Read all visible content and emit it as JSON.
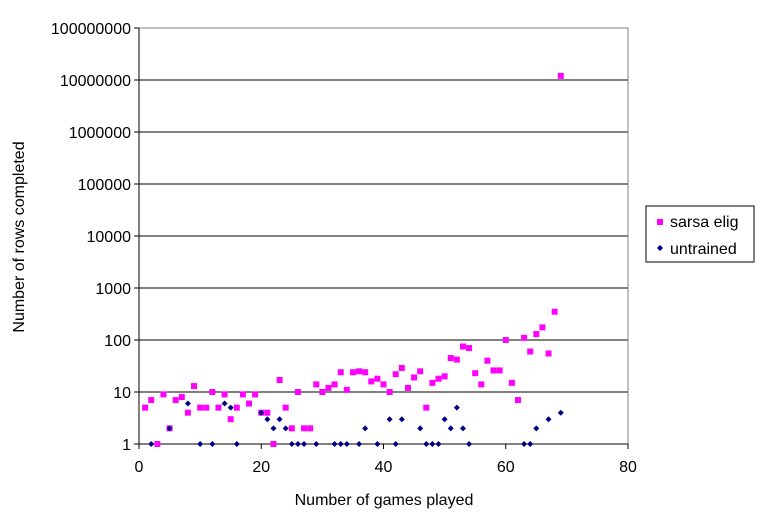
{
  "chart_data": {
    "type": "scatter",
    "xlabel": "Number of games played",
    "ylabel": "Number of rows completed",
    "xlim": [
      0,
      80
    ],
    "ylim": [
      1,
      100000000
    ],
    "yscale": "log",
    "x_ticks": [
      "0",
      "20",
      "40",
      "60",
      "80"
    ],
    "y_ticks": [
      "1",
      "10",
      "100",
      "1000",
      "10000",
      "100000",
      "1000000",
      "10000000",
      "100000000"
    ],
    "grid": "horizontal",
    "legend_position": "right",
    "series": [
      {
        "name": "sarsa elig",
        "color": "#ff00ff",
        "marker": "square",
        "points": [
          [
            1,
            5
          ],
          [
            2,
            7
          ],
          [
            3,
            1
          ],
          [
            4,
            9
          ],
          [
            5,
            2
          ],
          [
            6,
            7
          ],
          [
            7,
            8
          ],
          [
            8,
            4
          ],
          [
            9,
            13
          ],
          [
            10,
            5
          ],
          [
            11,
            5
          ],
          [
            12,
            10
          ],
          [
            13,
            5
          ],
          [
            14,
            9
          ],
          [
            15,
            3
          ],
          [
            16,
            5
          ],
          [
            17,
            9
          ],
          [
            18,
            6
          ],
          [
            19,
            9
          ],
          [
            20,
            4
          ],
          [
            21,
            4
          ],
          [
            22,
            1
          ],
          [
            23,
            17
          ],
          [
            24,
            5
          ],
          [
            25,
            2
          ],
          [
            26,
            10
          ],
          [
            27,
            2
          ],
          [
            28,
            2
          ],
          [
            29,
            14
          ],
          [
            30,
            10
          ],
          [
            31,
            12
          ],
          [
            32,
            14
          ],
          [
            33,
            24
          ],
          [
            34,
            11
          ],
          [
            35,
            24
          ],
          [
            36,
            25
          ],
          [
            37,
            24
          ],
          [
            38,
            16
          ],
          [
            39,
            18
          ],
          [
            40,
            14
          ],
          [
            41,
            10
          ],
          [
            42,
            22
          ],
          [
            43,
            29
          ],
          [
            44,
            12
          ],
          [
            45,
            19
          ],
          [
            46,
            25
          ],
          [
            47,
            5
          ],
          [
            48,
            15
          ],
          [
            49,
            18
          ],
          [
            50,
            20
          ],
          [
            51,
            45
          ],
          [
            52,
            42
          ],
          [
            53,
            75
          ],
          [
            54,
            70
          ],
          [
            55,
            23
          ],
          [
            56,
            14
          ],
          [
            57,
            40
          ],
          [
            58,
            26
          ],
          [
            59,
            26
          ],
          [
            60,
            100
          ],
          [
            61,
            15
          ],
          [
            62,
            7
          ],
          [
            63,
            110
          ],
          [
            64,
            60
          ],
          [
            65,
            130
          ],
          [
            66,
            175
          ],
          [
            67,
            55
          ],
          [
            68,
            350
          ],
          [
            69,
            12000000
          ]
        ]
      },
      {
        "name": "untrained",
        "color": "#000080",
        "marker": "diamond",
        "points": [
          [
            2,
            1
          ],
          [
            5,
            2
          ],
          [
            8,
            6
          ],
          [
            10,
            1
          ],
          [
            12,
            1
          ],
          [
            14,
            6
          ],
          [
            15,
            5
          ],
          [
            16,
            1
          ],
          [
            20,
            4
          ],
          [
            21,
            3
          ],
          [
            22,
            2
          ],
          [
            23,
            3
          ],
          [
            24,
            2
          ],
          [
            25,
            1
          ],
          [
            26,
            1
          ],
          [
            27,
            1
          ],
          [
            29,
            1
          ],
          [
            32,
            1
          ],
          [
            33,
            1
          ],
          [
            34,
            1
          ],
          [
            36,
            1
          ],
          [
            37,
            2
          ],
          [
            39,
            1
          ],
          [
            41,
            3
          ],
          [
            42,
            1
          ],
          [
            43,
            3
          ],
          [
            46,
            2
          ],
          [
            47,
            1
          ],
          [
            48,
            1
          ],
          [
            49,
            1
          ],
          [
            50,
            3
          ],
          [
            51,
            2
          ],
          [
            52,
            5
          ],
          [
            53,
            2
          ],
          [
            54,
            1
          ],
          [
            63,
            1
          ],
          [
            64,
            1
          ],
          [
            65,
            2
          ],
          [
            67,
            3
          ],
          [
            69,
            4
          ]
        ]
      }
    ]
  }
}
